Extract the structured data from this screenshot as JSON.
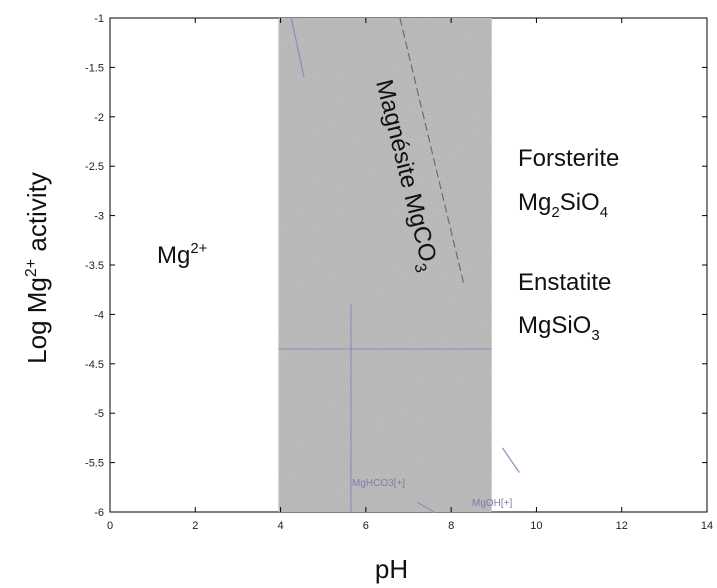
{
  "chart_data": {
    "type": "area",
    "title": "",
    "xlabel": "pH",
    "ylabel_main": "Log Mg",
    "ylabel_sup": "2+",
    "ylabel_tail": " activity",
    "xlim": [
      0,
      14
    ],
    "ylim": [
      -6,
      -1
    ],
    "grid": false,
    "x_ticks": [
      0,
      2,
      4,
      6,
      8,
      10,
      12,
      14
    ],
    "y_ticks": [
      -1,
      -1.5,
      -2,
      -2.5,
      -3,
      -3.5,
      -4,
      -4.5,
      -5,
      -5.5,
      -6
    ],
    "x_tick_labels": [
      "0",
      "2",
      "4",
      "6",
      "8",
      "10",
      "12",
      "14"
    ],
    "y_tick_labels": [
      "-1",
      "-1.5",
      "-2",
      "-2.5",
      "-3",
      "-3.5",
      "-4",
      "-4.5",
      "-5",
      "-5.5",
      "-6"
    ],
    "shaded_region": {
      "x_range": [
        3.95,
        8.95
      ],
      "y_range": [
        -6,
        -1
      ],
      "color": "#b5b5b5"
    },
    "horizontal_line_y": -4.35,
    "vertical_line_x": 5.65,
    "vertical_line_y_range": [
      -6,
      -3.9
    ],
    "dashed_line": [
      [
        6.8,
        -1
      ],
      [
        8.3,
        -3.7
      ]
    ],
    "faint_lines": [
      [
        [
          4.25,
          -1
        ],
        [
          4.55,
          -1.6
        ]
      ],
      [
        [
          7.2,
          -5.9
        ],
        [
          7.6,
          -6
        ]
      ],
      [
        [
          9.2,
          -5.35
        ],
        [
          9.6,
          -5.6
        ]
      ]
    ],
    "regions": {
      "magnesite": {
        "main": "Magnésite MgCO",
        "sub": "3"
      },
      "mg_ion": {
        "main": "Mg",
        "sup": "2+"
      },
      "forsterite_name": "Forsterite",
      "forsterite_formula": {
        "a": "Mg",
        "b": "2",
        "c": "SiO",
        "d": "4"
      },
      "enstatite_name": "Enstatite",
      "enstatite_formula": {
        "a": "MgSiO",
        "b": "3"
      }
    },
    "line_labels": {
      "mghco3": "MgHCO3[+]",
      "mgoh": "MgOH[+]"
    }
  },
  "colors": {
    "axis": "#000000",
    "guide_lines": "#8a8fb8",
    "text": "#111111"
  }
}
